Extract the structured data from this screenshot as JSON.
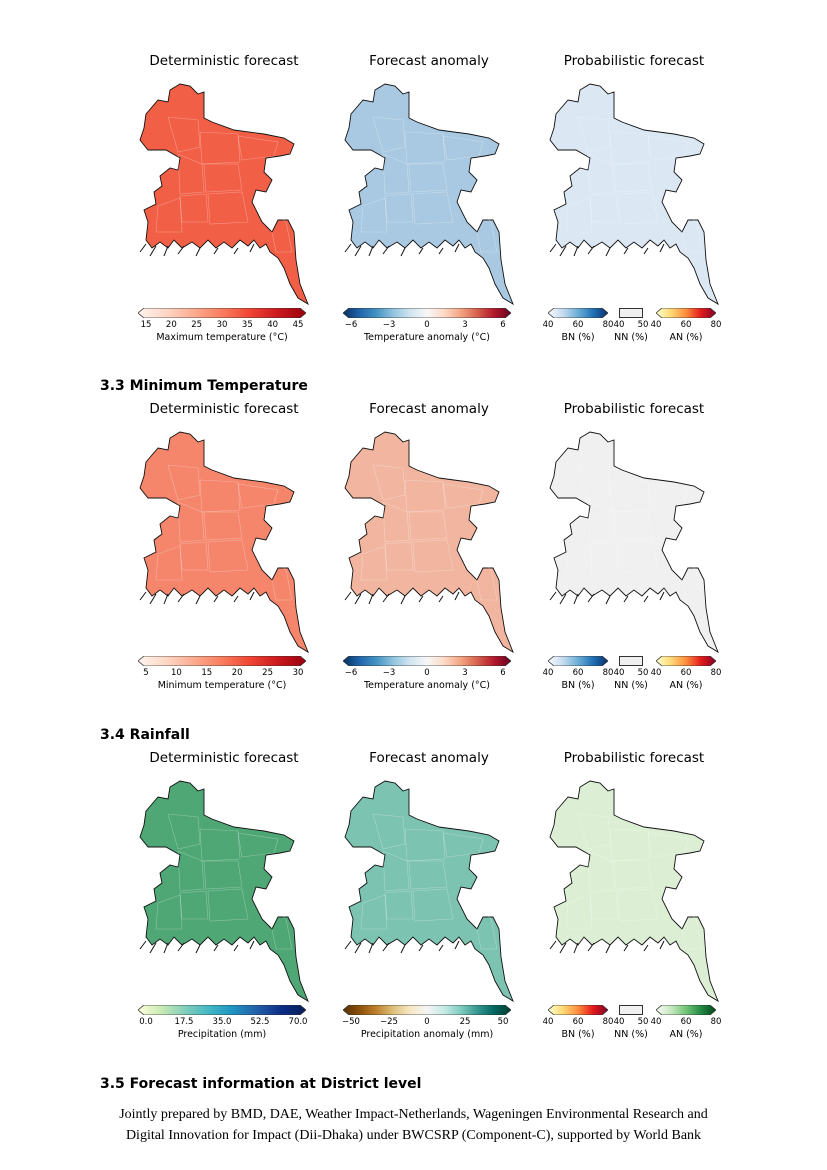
{
  "sections": [
    {
      "heading": "",
      "panels": [
        {
          "title": "Deterministic forecast",
          "fill": "#f16046",
          "cbar_label": "Maximum temperature (°C)",
          "ticks": [
            "15",
            "20",
            "25",
            "30",
            "35",
            "40",
            "45"
          ],
          "cmap": "reds"
        },
        {
          "title": "Forecast anomaly",
          "fill": "#a9c9e2",
          "cbar_label": "Temperature anomaly (°C)",
          "ticks": [
            "−6",
            "−3",
            "0",
            "3",
            "6"
          ],
          "cmap": "rdbu"
        },
        {
          "title": "Probabilistic forecast",
          "fill": "#dbe7f3",
          "prob": true,
          "bn_ticks": [
            "40",
            "60",
            "80"
          ],
          "nn_ticks": [
            "40",
            "50"
          ],
          "an_ticks": [
            "40",
            "60",
            "80"
          ],
          "bn_label": "BN (%)",
          "nn_label": "NN (%)",
          "an_label": "AN (%)",
          "bn_cmap": "blues",
          "an_cmap": "ylor"
        }
      ]
    },
    {
      "heading": "3.3 Minimum Temperature",
      "panels": [
        {
          "title": "Deterministic forecast",
          "fill": "#f5866c",
          "cbar_label": "Minimum temperature (°C)",
          "ticks": [
            "5",
            "10",
            "15",
            "20",
            "25",
            "30"
          ],
          "cmap": "reds"
        },
        {
          "title": "Forecast anomaly",
          "fill": "#f2b6a0",
          "cbar_label": "Temperature anomaly (°C)",
          "ticks": [
            "−6",
            "−3",
            "0",
            "3",
            "6"
          ],
          "cmap": "rdbu"
        },
        {
          "title": "Probabilistic forecast",
          "fill": "#f0f0f0",
          "prob": true,
          "bn_ticks": [
            "40",
            "60",
            "80"
          ],
          "nn_ticks": [
            "40",
            "50"
          ],
          "an_ticks": [
            "40",
            "60",
            "80"
          ],
          "bn_label": "BN (%)",
          "nn_label": "NN (%)",
          "an_label": "AN (%)",
          "bn_cmap": "blues",
          "an_cmap": "ylor"
        }
      ]
    },
    {
      "heading": "3.4 Rainfall",
      "panels": [
        {
          "title": "Deterministic forecast",
          "fill": "#4fa776",
          "cbar_label": "Precipitation (mm)",
          "ticks": [
            "0.0",
            "17.5",
            "35.0",
            "52.5",
            "70.0"
          ],
          "cmap": "ylgnbu"
        },
        {
          "title": "Forecast anomaly",
          "fill": "#7cc3b2",
          "cbar_label": "Precipitation anomaly (mm)",
          "ticks": [
            "−50",
            "−25",
            "0",
            "25",
            "50"
          ],
          "cmap": "brbg"
        },
        {
          "title": "Probabilistic forecast",
          "fill": "#dcefd4",
          "prob": true,
          "bn_ticks": [
            "40",
            "60",
            "80"
          ],
          "nn_ticks": [
            "40",
            "50"
          ],
          "an_ticks": [
            "40",
            "60",
            "80"
          ],
          "bn_label": "BN (%)",
          "nn_label": "NN (%)",
          "an_label": "AN (%)",
          "bn_cmap": "ylor",
          "an_cmap": "greens"
        }
      ]
    }
  ],
  "next_heading": "3.5 Forecast information at District level",
  "footer": {
    "line1": "Jointly prepared by BMD, DAE, Weather Impact-Netherlands, Wageningen Environmental Research and",
    "line2": "Digital Innovation for Impact (Dii-Dhaka) under BWCSRP (Component-C), supported by World Bank"
  },
  "colormaps": {
    "reds": [
      "#fff5f0",
      "#fdd7c6",
      "#fcab8f",
      "#fa7d5e",
      "#ef4533",
      "#cb181d",
      "#99000d"
    ],
    "rdbu": [
      "#053061",
      "#2166ac",
      "#4393c3",
      "#92c5de",
      "#d1e5f0",
      "#f7f7f7",
      "#fddbc7",
      "#f4a582",
      "#d6604d",
      "#b2182b",
      "#67001f"
    ],
    "blues": [
      "#f7fbff",
      "#c6dbef",
      "#6baed6",
      "#2171b5",
      "#08306b"
    ],
    "ylor": [
      "#ffffcc",
      "#fed976",
      "#fd8d3c",
      "#e31a1c",
      "#800026"
    ],
    "greens": [
      "#f7fcf5",
      "#c7e9c0",
      "#74c476",
      "#238b45",
      "#00441b"
    ],
    "ylgnbu": [
      "#ffffd9",
      "#c7e9b4",
      "#7fcdbb",
      "#41b6c4",
      "#1d91c0",
      "#225ea8",
      "#0c2c84",
      "#081d58"
    ],
    "brbg": [
      "#543005",
      "#8c510a",
      "#bf812d",
      "#dfc27d",
      "#f6e8c3",
      "#f5f5f5",
      "#c7eae5",
      "#80cdc1",
      "#35978f",
      "#01665e",
      "#003c30"
    ],
    "nn": [
      "#f0f0f0",
      "#f0f0f0"
    ]
  }
}
